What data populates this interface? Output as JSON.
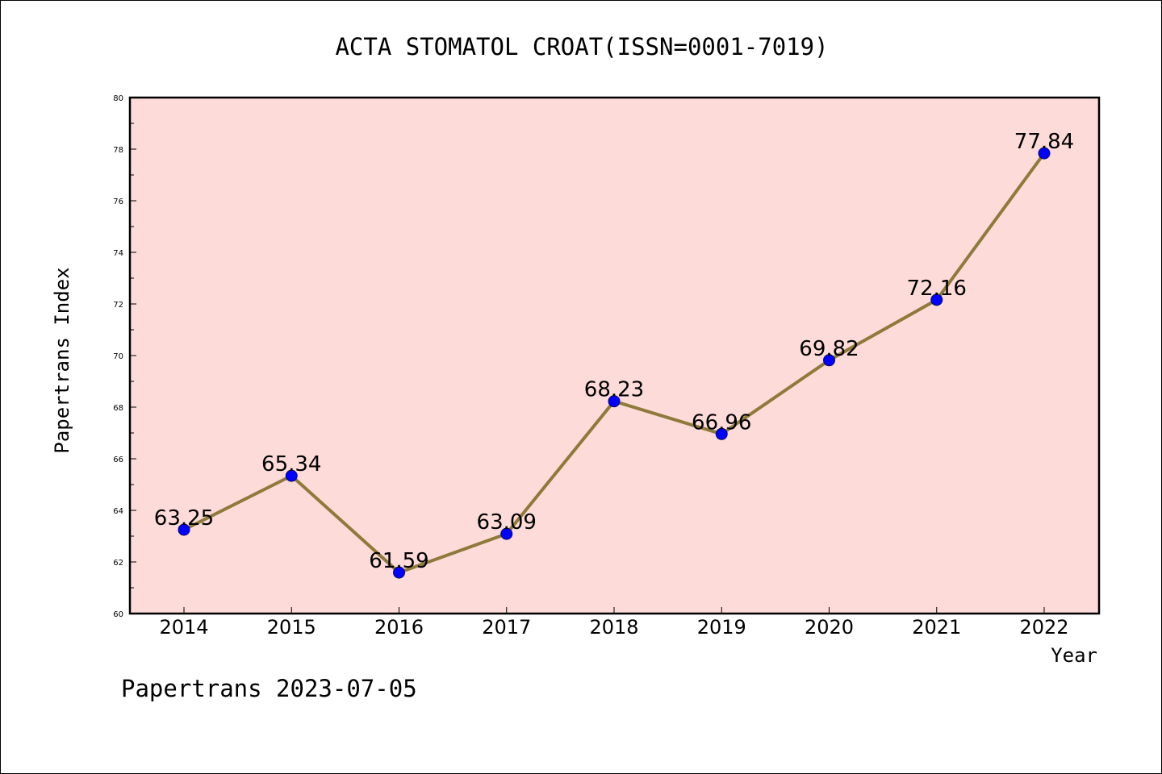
{
  "footer": "Papertrans 2023-07-05",
  "colors": {
    "plot_background": "#fddbd9",
    "line": "#8e7a3a",
    "marker_fill": "#0000ff",
    "marker_stroke": "#0a0a60"
  },
  "chart_data": {
    "type": "line",
    "title": "ACTA STOMATOL CROAT(ISSN=0001-7019)",
    "xlabel": "Year",
    "ylabel": "Papertrans Index",
    "categories": [
      "2014",
      "2015",
      "2016",
      "2017",
      "2018",
      "2019",
      "2020",
      "2021",
      "2022"
    ],
    "values": [
      63.25,
      65.34,
      61.59,
      63.09,
      68.23,
      66.96,
      69.82,
      72.16,
      77.84
    ],
    "data_labels": [
      "63.25",
      "65.34",
      "61.59",
      "63.09",
      "68.23",
      "66.96",
      "69.82",
      "72.16",
      "77.84"
    ],
    "ylim": [
      60,
      80
    ],
    "yticks": [
      "60",
      "62",
      "64",
      "66",
      "68",
      "70",
      "72",
      "74",
      "76",
      "78",
      "80"
    ],
    "grid": false,
    "legend": "none"
  }
}
